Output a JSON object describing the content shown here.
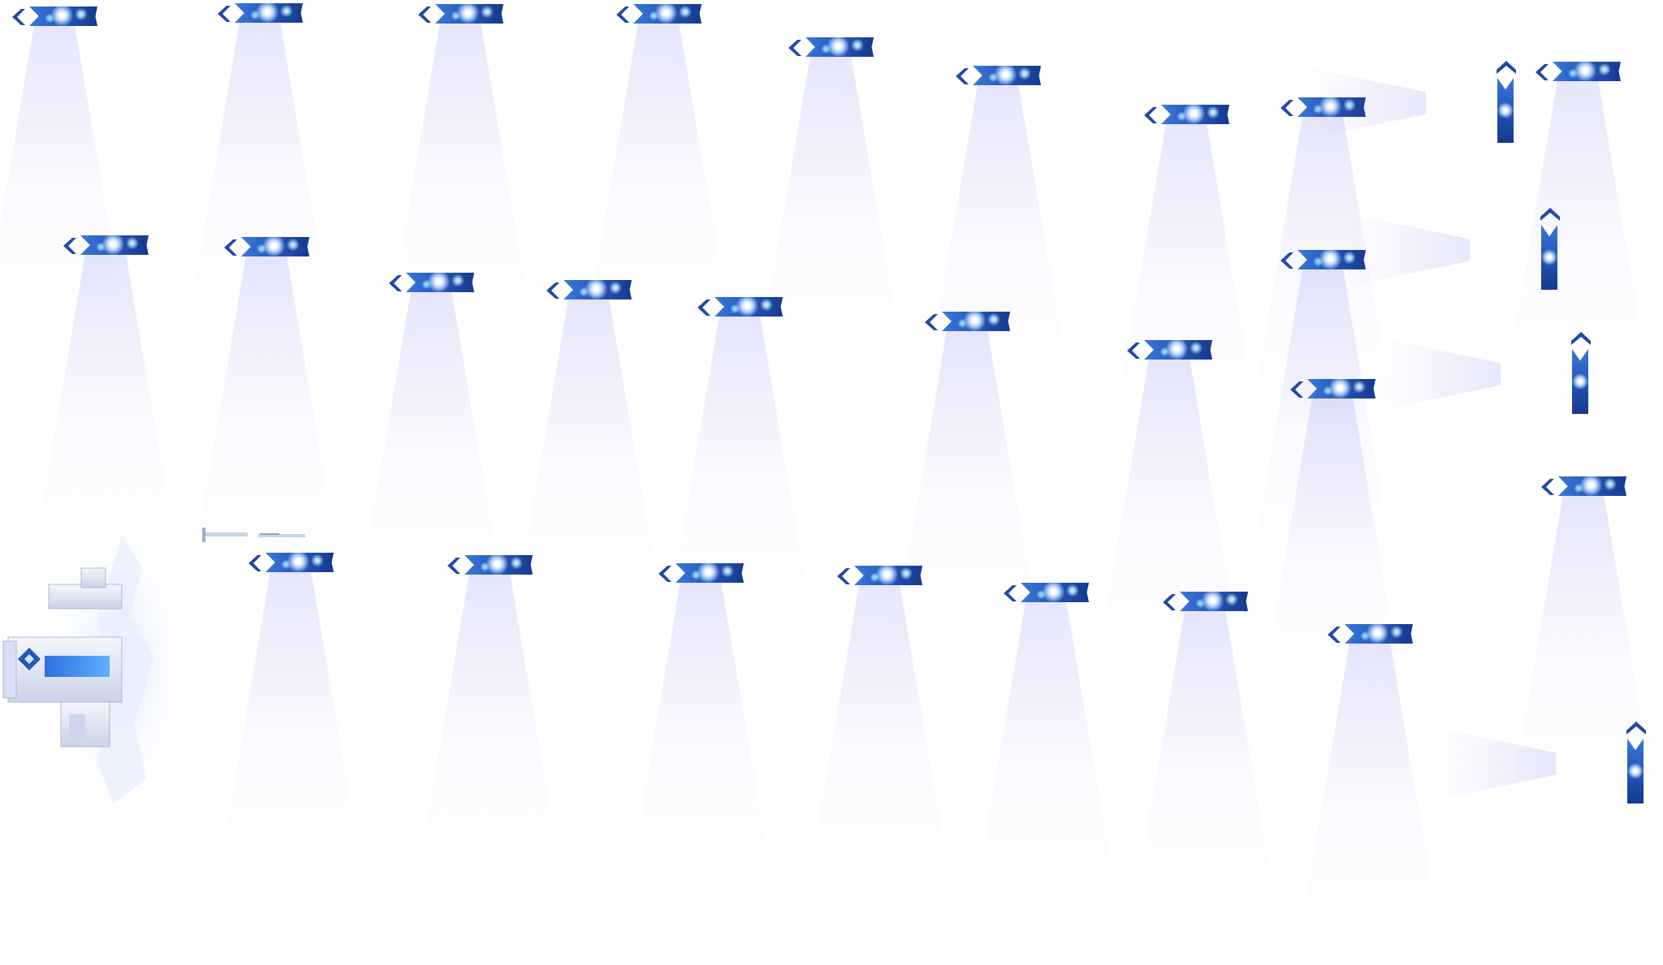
{
  "atlas": {
    "background": "#ffffff",
    "sign_colors": {
      "dark": "#16398c",
      "mid": "#2456b8",
      "light": "#3a78d8",
      "glow": "#b9d7ff"
    },
    "beam_color": "#6e6ef0",
    "icons": {
      "sign": "nebula-signpost-icon",
      "arrow": "chevron-icon",
      "castle": "ice-castle-icon"
    },
    "signposts": [
      {
        "orientation": "horizontal"
      },
      {
        "orientation": "horizontal"
      },
      {
        "orientation": "horizontal"
      },
      {
        "orientation": "horizontal"
      },
      {
        "orientation": "horizontal"
      },
      {
        "orientation": "horizontal"
      },
      {
        "orientation": "horizontal"
      },
      {
        "orientation": "horizontal"
      },
      {
        "orientation": "vertical"
      },
      {
        "orientation": "horizontal"
      },
      {
        "orientation": "horizontal"
      },
      {
        "orientation": "horizontal"
      },
      {
        "orientation": "horizontal"
      },
      {
        "orientation": "horizontal"
      },
      {
        "orientation": "horizontal"
      },
      {
        "orientation": "horizontal"
      },
      {
        "orientation": "horizontal"
      },
      {
        "orientation": "horizontal"
      },
      {
        "orientation": "vertical"
      },
      {
        "orientation": "horizontal"
      },
      {
        "orientation": "vertical"
      },
      {
        "orientation": "horizontal"
      },
      {
        "orientation": "horizontal"
      },
      {
        "orientation": "horizontal"
      },
      {
        "orientation": "horizontal"
      },
      {
        "orientation": "horizontal"
      },
      {
        "orientation": "horizontal"
      },
      {
        "orientation": "horizontal"
      },
      {
        "orientation": "horizontal"
      },
      {
        "orientation": "vertical"
      }
    ]
  }
}
